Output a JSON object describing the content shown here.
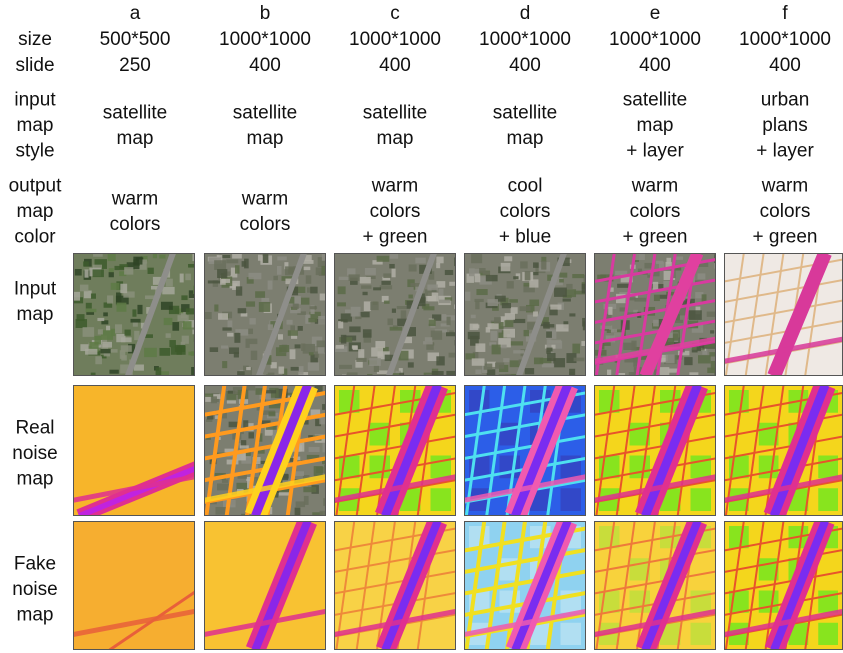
{
  "row_labels": {
    "size": "size",
    "slide": "slide",
    "input_style": [
      "input",
      "map",
      "style"
    ],
    "output_color": [
      "output",
      "map",
      "color"
    ],
    "input_map": [
      "Input",
      "map"
    ],
    "real_noise_map": [
      "Real",
      "noise",
      "map"
    ],
    "fake_noise_map": [
      "Fake",
      "noise",
      "map"
    ]
  },
  "columns": [
    {
      "letter": "a",
      "size": "500*500",
      "slide": "250",
      "input_style": [
        "satellite",
        "map"
      ],
      "output_color": [
        "warm",
        "colors"
      ]
    },
    {
      "letter": "b",
      "size": "1000*1000",
      "slide": "400",
      "input_style": [
        "satellite",
        "map"
      ],
      "output_color": [
        "warm",
        "colors"
      ]
    },
    {
      "letter": "c",
      "size": "1000*1000",
      "slide": "400",
      "input_style": [
        "satellite",
        "map"
      ],
      "output_color": [
        "warm",
        "colors",
        "+ green"
      ]
    },
    {
      "letter": "d",
      "size": "1000*1000",
      "slide": "400",
      "input_style": [
        "satellite",
        "map"
      ],
      "output_color": [
        "cool",
        "colors",
        "+ blue"
      ]
    },
    {
      "letter": "e",
      "size": "1000*1000",
      "slide": "400",
      "input_style": [
        "satellite",
        "map",
        "+ layer"
      ],
      "output_color": [
        "warm",
        "colors",
        "+ green"
      ]
    },
    {
      "letter": "f",
      "size": "1000*1000",
      "slide": "400",
      "input_style": [
        "urban",
        "plans",
        "+ layer"
      ],
      "output_color": [
        "warm",
        "colors",
        "+ green"
      ]
    }
  ]
}
